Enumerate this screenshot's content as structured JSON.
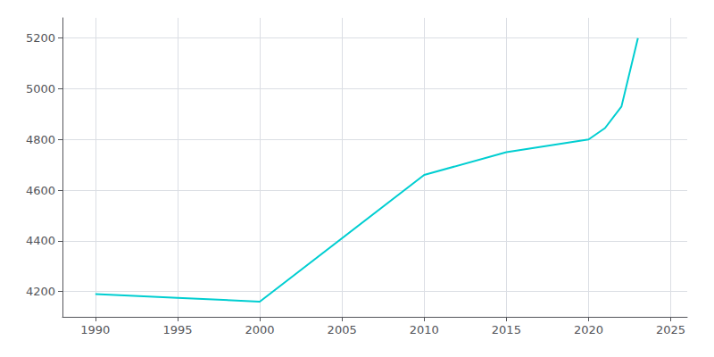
{
  "chart_data": {
    "type": "line",
    "x": [
      1990,
      1995,
      2000,
      2010,
      2015,
      2020,
      2021,
      2022,
      2023
    ],
    "values": [
      4190,
      4175,
      4160,
      4660,
      4750,
      4800,
      4845,
      4930,
      5200
    ],
    "color": "#00CED1",
    "xlim": [
      1988,
      2026
    ],
    "ylim": [
      4100,
      5280
    ],
    "xticks": [
      1990,
      1995,
      2000,
      2005,
      2010,
      2015,
      2020,
      2025
    ],
    "yticks": [
      4200,
      4400,
      4600,
      4800,
      5000,
      5200
    ],
    "grid": true
  }
}
